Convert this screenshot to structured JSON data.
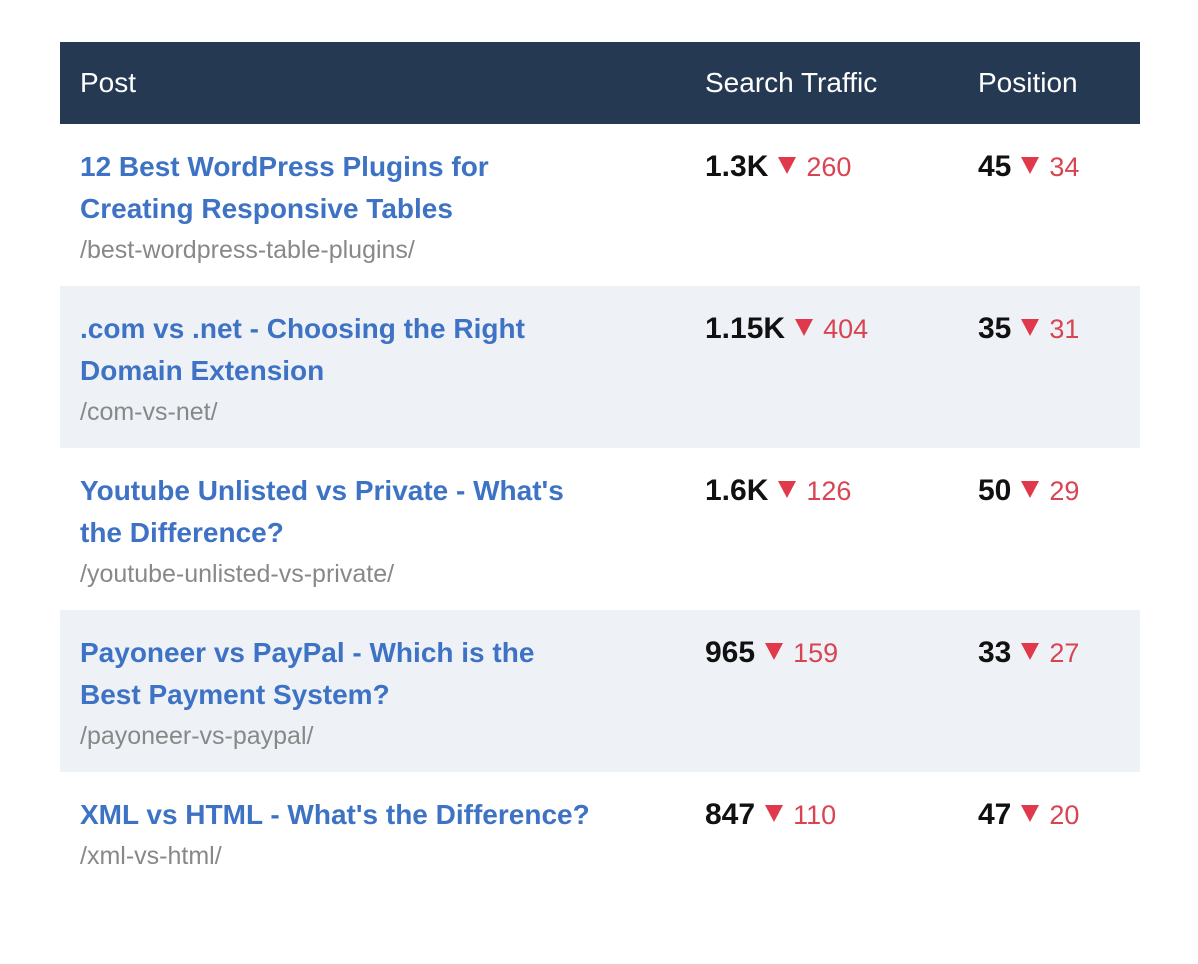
{
  "header": {
    "post": "Post",
    "traffic": "Search Traffic",
    "position": "Position"
  },
  "colors": {
    "header_bg": "#253a52",
    "link": "#3d72c4",
    "decrease": "#e0394b",
    "alt_row": "#eef2f7"
  },
  "rows": [
    {
      "title": "12 Best WordPress Plugins for Creating Responsive Tables",
      "slug": "/best-wordpress-table-plugins/",
      "traffic": "1.3K",
      "traffic_delta": "260",
      "position": "45",
      "position_delta": "34"
    },
    {
      "title": ".com vs .net - Choosing the Right Domain Extension",
      "slug": "/com-vs-net/",
      "traffic": "1.15K",
      "traffic_delta": "404",
      "position": "35",
      "position_delta": "31"
    },
    {
      "title": "Youtube Unlisted vs Private - What's the Difference?",
      "slug": "/youtube-unlisted-vs-private/",
      "traffic": "1.6K",
      "traffic_delta": "126",
      "position": "50",
      "position_delta": "29"
    },
    {
      "title": "Payoneer vs PayPal - Which is the Best Payment System?",
      "slug": "/payoneer-vs-paypal/",
      "traffic": "965",
      "traffic_delta": "159",
      "position": "33",
      "position_delta": "27"
    },
    {
      "title": "XML vs HTML - What's the Difference?",
      "slug": "/xml-vs-html/",
      "traffic": "847",
      "traffic_delta": "110",
      "position": "47",
      "position_delta": "20"
    }
  ]
}
